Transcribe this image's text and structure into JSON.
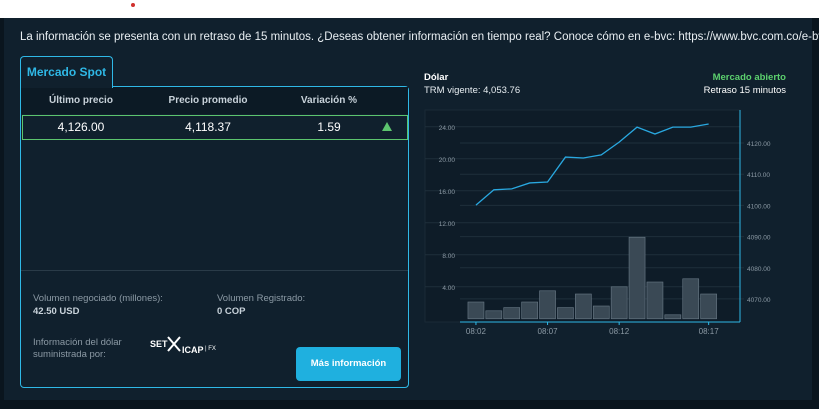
{
  "notice": "La información se presenta con un retraso de 15 minutos. ¿Deseas obtener información en tiempo real? Conoce cómo en e-bvc: https://www.bvc.com.co/e-bvc",
  "tab": "Mercado Spot",
  "table": {
    "headers": [
      "Último precio",
      "Precio promedio",
      "Variación %"
    ],
    "rows": [
      [
        "4,126.00",
        "4,118.37",
        "1.59"
      ]
    ]
  },
  "volume": {
    "negotiated_label": "Volumen negociado (millones):",
    "negotiated_value": "42.50 USD",
    "registered_label": "Volumen Registrado:",
    "registered_value": "0 COP"
  },
  "source": {
    "label_line1": "Información del dólar",
    "label_line2": "suministrada por:",
    "logo": "SET",
    "logo2": "ICAP",
    "logo3": "| FX"
  },
  "button": "Más información",
  "header": {
    "title": "Dólar",
    "trm": "TRM vigente: 4,053.76",
    "status": "Mercado abierto",
    "delay": "Retraso 15 minutos"
  },
  "chart_data": {
    "type": "combo",
    "categories": [
      "08:02",
      null,
      null,
      null,
      "08:07",
      null,
      null,
      null,
      "08:12",
      null,
      null,
      null,
      null,
      "08:17"
    ],
    "series": [
      {
        "type": "bar",
        "color": "#3a4955",
        "values": [
          2.1,
          1.0,
          1.4,
          2.1,
          3.5,
          1.4,
          3.1,
          1.6,
          4.0,
          10.2,
          4.6,
          0.5,
          5.0,
          3.1
        ]
      },
      {
        "type": "line",
        "axis": "y2",
        "color": "#29a8e0",
        "values": [
          4100.1,
          4105.0,
          4105.3,
          4107.2,
          4107.5,
          4115.5,
          4115.2,
          4116.2,
          4120.3,
          4125.1,
          4122.9,
          4125.1,
          4125.1,
          4126.1
        ]
      }
    ],
    "ylim": [
      -0.4,
      26.1
    ],
    "yticks": [
      {
        "value": 4,
        "label": "4.00"
      },
      {
        "value": 8,
        "label": "8.00"
      },
      {
        "value": 12,
        "label": "12.00"
      },
      {
        "value": 16,
        "label": "16.00"
      },
      {
        "value": 20,
        "label": "20.00"
      },
      {
        "value": 24,
        "label": "24.00"
      }
    ],
    "y2lim": [
      4062.6,
      4130.6
    ],
    "y2ticks": [
      {
        "value": 4070,
        "label": "4070.00"
      },
      {
        "value": 4080,
        "label": "4080.00"
      },
      {
        "value": 4090,
        "label": "4090.00"
      },
      {
        "value": 4100,
        "label": "4100.00"
      },
      {
        "value": 4110,
        "label": "4110.00"
      },
      {
        "value": 4120,
        "label": "4120.00"
      }
    ],
    "grid": true
  }
}
